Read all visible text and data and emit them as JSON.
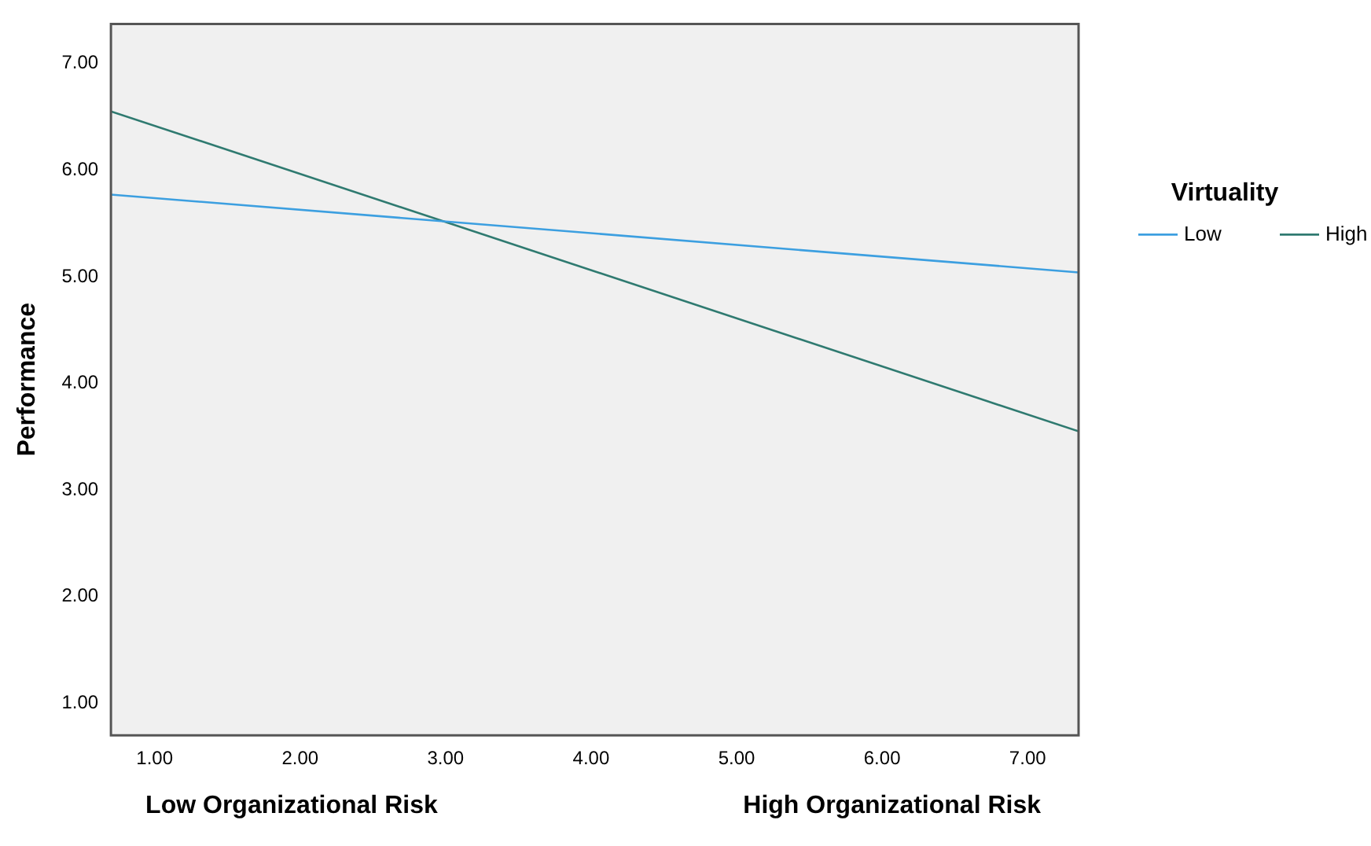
{
  "chart_data": {
    "type": "line",
    "ylabel": "Performance",
    "legend_title": "Virtuality",
    "x": [
      0.7,
      7.35
    ],
    "series": [
      {
        "name": "Low",
        "color": "#3c9fe0",
        "values": [
          5.77,
          5.04
        ]
      },
      {
        "name": "High",
        "color": "#2f7a70",
        "values": [
          6.55,
          3.55
        ]
      }
    ],
    "xlim": [
      0.7,
      7.35
    ],
    "xticks": [
      {
        "value": 1,
        "label": "1.00"
      },
      {
        "value": 2,
        "label": "2.00"
      },
      {
        "value": 3,
        "label": "3.00"
      },
      {
        "value": 4,
        "label": "4.00"
      },
      {
        "value": 5,
        "label": "5.00"
      },
      {
        "value": 6,
        "label": "6.00"
      },
      {
        "value": 7,
        "label": "7.00"
      }
    ],
    "ylim": [
      0.7,
      7.37
    ],
    "yticks": [
      {
        "value": 1,
        "label": "1.00"
      },
      {
        "value": 2,
        "label": "2.00"
      },
      {
        "value": 3,
        "label": "3.00"
      },
      {
        "value": 4,
        "label": "4.00"
      },
      {
        "value": 5,
        "label": "5.00"
      },
      {
        "value": 6,
        "label": "6.00"
      },
      {
        "value": 7,
        "label": "7.00"
      }
    ],
    "annotations": [
      "Low Organizational Risk",
      "High Organizational Risk"
    ],
    "grid": false,
    "legend": "right",
    "marker": "none",
    "line_style": "solid"
  }
}
